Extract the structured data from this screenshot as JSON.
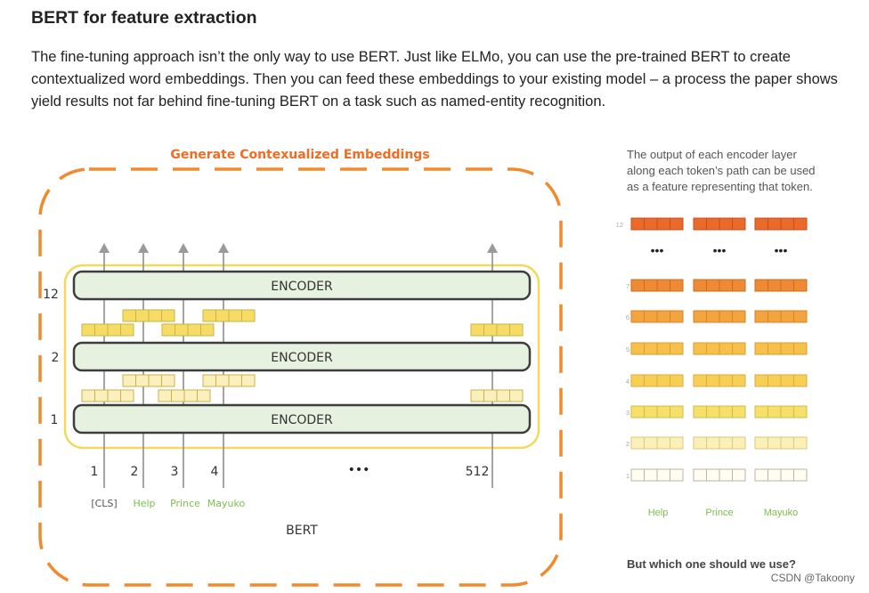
{
  "article": {
    "heading": "BERT for feature extraction",
    "paragraph": "The fine-tuning approach isn’t the only way to use BERT. Just like ELMo, you can use the pre-trained BERT to create contextualized word embeddings. Then you can feed these embeddings to your existing model – a process the paper shows yield results not far behind fine-tuning BERT on a task such as named-entity recognition."
  },
  "diagram": {
    "title": "Generate Contexualized Embeddings",
    "encoder_label": "ENCODER",
    "layer_numbers": [
      "12",
      "2",
      "1"
    ],
    "positions": [
      "1",
      "2",
      "3",
      "4",
      "512"
    ],
    "ellipsis": "•••",
    "tokens": [
      "[CLS]",
      "Help",
      "Prince",
      "Mayuko"
    ],
    "model_name": "BERT",
    "colors": {
      "frame": "#f08a2c",
      "title": "#f06c22",
      "outer_box": "#f3d95a",
      "encoder_fill": "#e6f2df",
      "encoder_border": "#3d3d3d",
      "token_green": "#7dbf4a",
      "arrow": "#9a9a9a"
    }
  },
  "side": {
    "caption": "The output of each encoder layer along each token’s path can be used as a feature representing that token.",
    "layer_labels": [
      "12",
      "7",
      "6",
      "5",
      "4",
      "3",
      "2",
      "1"
    ],
    "ellipsis": "•••",
    "tokens": [
      "Help",
      "Prince",
      "Mayuko"
    ],
    "question": "But which one should we use?"
  },
  "watermark": "CSDN @Takoony"
}
